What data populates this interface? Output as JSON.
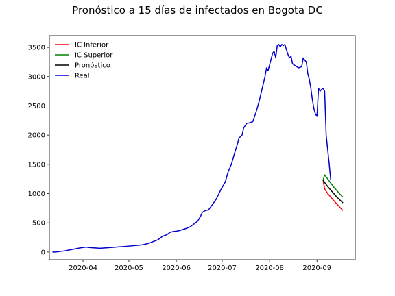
{
  "chart_data": {
    "type": "line",
    "title": "Pronóstico a 15 días de infectados en Bogota DC",
    "xlabel": "",
    "ylabel": "",
    "x_type": "date",
    "xlim": [
      "2020-03-10",
      "2020-09-26"
    ],
    "ylim": [
      -130,
      3700
    ],
    "x_ticks": [
      "2020-04",
      "2020-05",
      "2020-06",
      "2020-07",
      "2020-08",
      "2020-09"
    ],
    "x_tick_dates": [
      "2020-04-01",
      "2020-05-01",
      "2020-06-01",
      "2020-07-01",
      "2020-08-01",
      "2020-09-01"
    ],
    "y_ticks": [
      0,
      500,
      1000,
      1500,
      2000,
      2500,
      3000,
      3500
    ],
    "grid": false,
    "legend_position": "top-left",
    "series": [
      {
        "name": "IC Inferior",
        "color": "#ff0000",
        "points": [
          [
            "2020-09-05",
            1230
          ],
          [
            "2020-09-06",
            1080
          ],
          [
            "2020-09-08",
            1000
          ],
          [
            "2020-09-10",
            940
          ],
          [
            "2020-09-12",
            880
          ],
          [
            "2020-09-14",
            820
          ],
          [
            "2020-09-16",
            765
          ],
          [
            "2020-09-18",
            710
          ]
        ]
      },
      {
        "name": "IC Superior",
        "color": "#008000",
        "points": [
          [
            "2020-09-05",
            1230
          ],
          [
            "2020-09-06",
            1320
          ],
          [
            "2020-09-08",
            1250
          ],
          [
            "2020-09-10",
            1180
          ],
          [
            "2020-09-12",
            1110
          ],
          [
            "2020-09-14",
            1050
          ],
          [
            "2020-09-16",
            990
          ],
          [
            "2020-09-18",
            940
          ]
        ]
      },
      {
        "name": "Pronóstico",
        "color": "#000000",
        "points": [
          [
            "2020-09-05",
            1230
          ],
          [
            "2020-09-06",
            1190
          ],
          [
            "2020-09-08",
            1120
          ],
          [
            "2020-09-10",
            1060
          ],
          [
            "2020-09-12",
            1000
          ],
          [
            "2020-09-14",
            940
          ],
          [
            "2020-09-16",
            890
          ],
          [
            "2020-09-18",
            840
          ]
        ]
      },
      {
        "name": "Real",
        "color": "#0000cd",
        "points": [
          [
            "2020-03-12",
            0
          ],
          [
            "2020-03-14",
            0
          ],
          [
            "2020-03-17",
            10
          ],
          [
            "2020-03-20",
            20
          ],
          [
            "2020-03-23",
            35
          ],
          [
            "2020-03-26",
            50
          ],
          [
            "2020-03-30",
            70
          ],
          [
            "2020-04-03",
            85
          ],
          [
            "2020-04-06",
            75
          ],
          [
            "2020-04-09",
            70
          ],
          [
            "2020-04-12",
            65
          ],
          [
            "2020-04-16",
            72
          ],
          [
            "2020-04-20",
            80
          ],
          [
            "2020-04-24",
            88
          ],
          [
            "2020-04-28",
            95
          ],
          [
            "2020-05-02",
            105
          ],
          [
            "2020-05-06",
            115
          ],
          [
            "2020-05-10",
            125
          ],
          [
            "2020-05-14",
            150
          ],
          [
            "2020-05-18",
            190
          ],
          [
            "2020-05-20",
            210
          ],
          [
            "2020-05-23",
            270
          ],
          [
            "2020-05-26",
            300
          ],
          [
            "2020-05-28",
            340
          ],
          [
            "2020-05-31",
            355
          ],
          [
            "2020-06-02",
            360
          ],
          [
            "2020-06-04",
            375
          ],
          [
            "2020-06-07",
            400
          ],
          [
            "2020-06-10",
            430
          ],
          [
            "2020-06-13",
            490
          ],
          [
            "2020-06-15",
            530
          ],
          [
            "2020-06-17",
            620
          ],
          [
            "2020-06-18",
            680
          ],
          [
            "2020-06-20",
            710
          ],
          [
            "2020-06-22",
            720
          ],
          [
            "2020-06-24",
            790
          ],
          [
            "2020-06-27",
            900
          ],
          [
            "2020-06-30",
            1060
          ],
          [
            "2020-07-03",
            1200
          ],
          [
            "2020-07-05",
            1380
          ],
          [
            "2020-07-07",
            1500
          ],
          [
            "2020-07-09",
            1680
          ],
          [
            "2020-07-11",
            1850
          ],
          [
            "2020-07-12",
            1950
          ],
          [
            "2020-07-14",
            2000
          ],
          [
            "2020-07-15",
            2120
          ],
          [
            "2020-07-17",
            2200
          ],
          [
            "2020-07-19",
            2210
          ],
          [
            "2020-07-21",
            2230
          ],
          [
            "2020-07-23",
            2380
          ],
          [
            "2020-07-25",
            2560
          ],
          [
            "2020-07-27",
            2780
          ],
          [
            "2020-07-29",
            3000
          ],
          [
            "2020-07-30",
            3150
          ],
          [
            "2020-07-31",
            3100
          ],
          [
            "2020-08-02",
            3300
          ],
          [
            "2020-08-03",
            3400
          ],
          [
            "2020-08-04",
            3430
          ],
          [
            "2020-08-05",
            3320
          ],
          [
            "2020-08-06",
            3530
          ],
          [
            "2020-08-07",
            3550
          ],
          [
            "2020-08-08",
            3510
          ],
          [
            "2020-08-09",
            3550
          ],
          [
            "2020-08-10",
            3530
          ],
          [
            "2020-08-11",
            3550
          ],
          [
            "2020-08-12",
            3460
          ],
          [
            "2020-08-13",
            3380
          ],
          [
            "2020-08-14",
            3320
          ],
          [
            "2020-08-15",
            3350
          ],
          [
            "2020-08-16",
            3220
          ],
          [
            "2020-08-18",
            3180
          ],
          [
            "2020-08-20",
            3150
          ],
          [
            "2020-08-22",
            3170
          ],
          [
            "2020-08-23",
            3320
          ],
          [
            "2020-08-24",
            3280
          ],
          [
            "2020-08-25",
            3250
          ],
          [
            "2020-08-26",
            3050
          ],
          [
            "2020-08-27",
            2950
          ],
          [
            "2020-08-28",
            2800
          ],
          [
            "2020-08-29",
            2600
          ],
          [
            "2020-08-30",
            2450
          ],
          [
            "2020-08-31",
            2360
          ],
          [
            "2020-09-01",
            2320
          ],
          [
            "2020-09-02",
            2800
          ],
          [
            "2020-09-03",
            2750
          ],
          [
            "2020-09-04",
            2780
          ],
          [
            "2020-09-05",
            2800
          ],
          [
            "2020-09-06",
            2750
          ],
          [
            "2020-09-07",
            2000
          ],
          [
            "2020-09-08",
            1750
          ],
          [
            "2020-09-09",
            1500
          ],
          [
            "2020-09-10",
            1230
          ]
        ]
      }
    ]
  }
}
